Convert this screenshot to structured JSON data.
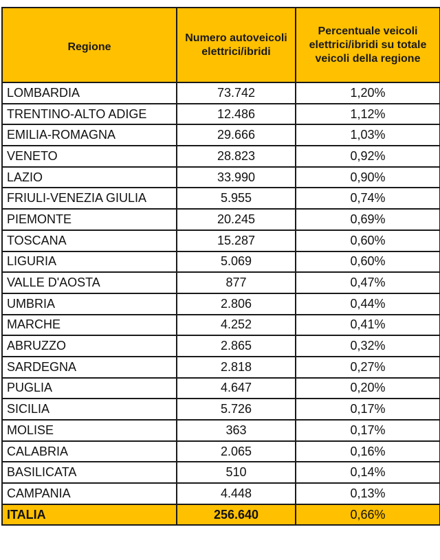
{
  "table": {
    "headers": {
      "regione": "Regione",
      "numero": "Numero autoveicoli elettrici/ibridi",
      "percentuale": "Percentuale veicoli elettrici/ibridi su totale veicoli della regione"
    },
    "rows": [
      {
        "regione": "LOMBARDIA",
        "numero": "73.742",
        "percentuale": "1,20%"
      },
      {
        "regione": "TRENTINO-ALTO ADIGE",
        "numero": "12.486",
        "percentuale": "1,12%"
      },
      {
        "regione": "EMILIA-ROMAGNA",
        "numero": "29.666",
        "percentuale": "1,03%"
      },
      {
        "regione": "VENETO",
        "numero": "28.823",
        "percentuale": "0,92%"
      },
      {
        "regione": "LAZIO",
        "numero": "33.990",
        "percentuale": "0,90%"
      },
      {
        "regione": "FRIULI-VENEZIA GIULIA",
        "numero": "5.955",
        "percentuale": "0,74%"
      },
      {
        "regione": "PIEMONTE",
        "numero": "20.245",
        "percentuale": "0,69%"
      },
      {
        "regione": "TOSCANA",
        "numero": "15.287",
        "percentuale": "0,60%"
      },
      {
        "regione": "LIGURIA",
        "numero": "5.069",
        "percentuale": "0,60%"
      },
      {
        "regione": "VALLE D'AOSTA",
        "numero": "877",
        "percentuale": "0,47%"
      },
      {
        "regione": "UMBRIA",
        "numero": "2.806",
        "percentuale": "0,44%"
      },
      {
        "regione": "MARCHE",
        "numero": "4.252",
        "percentuale": "0,41%"
      },
      {
        "regione": "ABRUZZO",
        "numero": "2.865",
        "percentuale": "0,32%"
      },
      {
        "regione": "SARDEGNA",
        "numero": "2.818",
        "percentuale": "0,27%"
      },
      {
        "regione": "PUGLIA",
        "numero": "4.647",
        "percentuale": "0,20%"
      },
      {
        "regione": "SICILIA",
        "numero": "5.726",
        "percentuale": "0,17%"
      },
      {
        "regione": "MOLISE",
        "numero": "363",
        "percentuale": "0,17%"
      },
      {
        "regione": "CALABRIA",
        "numero": "2.065",
        "percentuale": "0,16%"
      },
      {
        "regione": "BASILICATA",
        "numero": "510",
        "percentuale": "0,14%"
      },
      {
        "regione": "CAMPANIA",
        "numero": "4.448",
        "percentuale": "0,13%"
      }
    ],
    "total": {
      "regione": "ITALIA",
      "numero": "256.640",
      "percentuale": "0,66%"
    }
  },
  "colors": {
    "header_bg": "#FFC000",
    "border": "#1a1a1a",
    "body_bg": "#ffffff"
  }
}
